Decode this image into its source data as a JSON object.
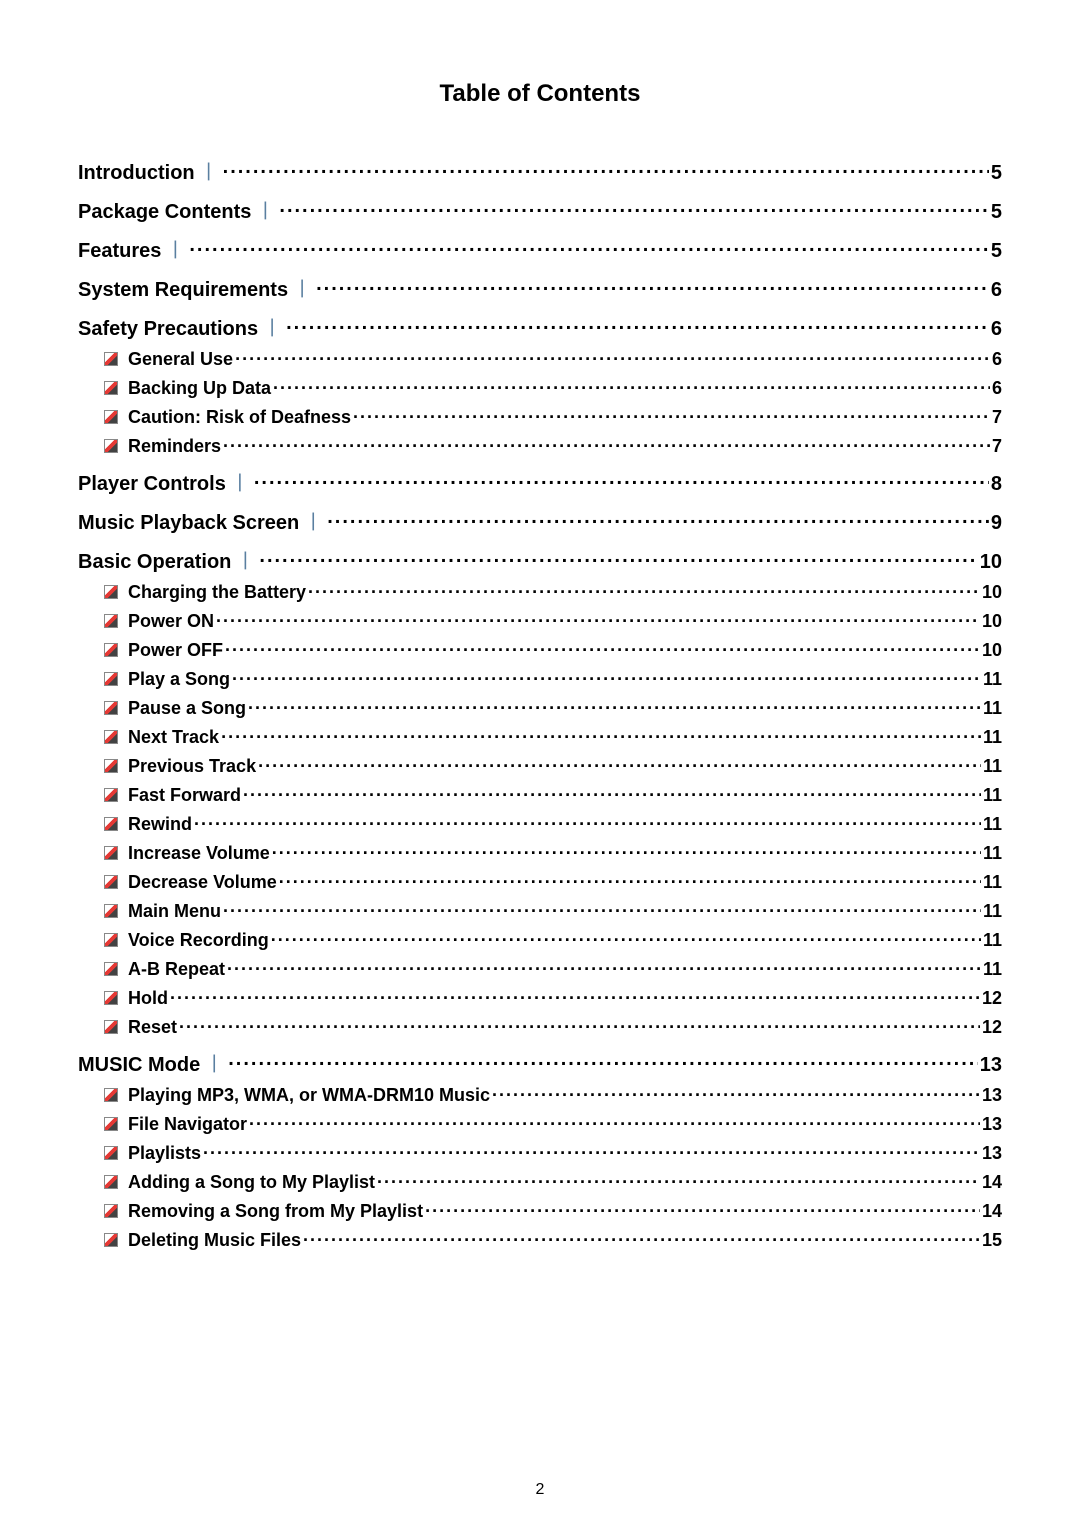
{
  "title": "Table of Contents",
  "pageNumber": "2",
  "colors": {
    "pipe": "#5a7fa0",
    "text": "#000000",
    "background": "#ffffff",
    "bulletRed": "#e53935",
    "bulletDark": "#424242"
  },
  "typography": {
    "titleFontSize": 24,
    "topFontSize": 20,
    "subFontSize": 18,
    "fontFamily": "Arial"
  },
  "entries": [
    {
      "level": "top",
      "label": "Introduction",
      "page": "5",
      "pipe": true
    },
    {
      "level": "top",
      "label": "Package Contents",
      "page": "5",
      "pipe": true
    },
    {
      "level": "top",
      "label": "Features",
      "page": "5",
      "pipe": true
    },
    {
      "level": "top",
      "label": "System Requirements",
      "page": "6",
      "pipe": true
    },
    {
      "level": "top",
      "label": "Safety Precautions",
      "page": "6",
      "pipe": true
    },
    {
      "level": "sub",
      "label": "General Use",
      "page": "6"
    },
    {
      "level": "sub",
      "label": "Backing Up Data",
      "page": "6"
    },
    {
      "level": "sub",
      "label": "Caution: Risk of Deafness",
      "page": "7"
    },
    {
      "level": "sub",
      "label": "Reminders",
      "page": "7"
    },
    {
      "level": "top",
      "label": "Player Controls",
      "page": "8",
      "pipe": true
    },
    {
      "level": "top",
      "label": "Music Playback Screen",
      "page": "9",
      "pipe": true
    },
    {
      "level": "top",
      "label": "Basic Operation",
      "page": "10",
      "pipe": true
    },
    {
      "level": "sub",
      "label": "Charging the Battery",
      "page": "10"
    },
    {
      "level": "sub",
      "label": "Power ON",
      "page": "10"
    },
    {
      "level": "sub",
      "label": "Power OFF",
      "page": "10"
    },
    {
      "level": "sub",
      "label": "Play a Song",
      "page": "11"
    },
    {
      "level": "sub",
      "label": "Pause a Song",
      "page": "11"
    },
    {
      "level": "sub",
      "label": "Next Track",
      "page": "11"
    },
    {
      "level": "sub",
      "label": "Previous Track",
      "page": "11"
    },
    {
      "level": "sub",
      "label": "Fast Forward",
      "page": "11"
    },
    {
      "level": "sub",
      "label": "Rewind",
      "page": "11"
    },
    {
      "level": "sub",
      "label": "Increase Volume",
      "page": "11"
    },
    {
      "level": "sub",
      "label": "Decrease Volume",
      "page": "11"
    },
    {
      "level": "sub",
      "label": "Main Menu",
      "page": "11"
    },
    {
      "level": "sub",
      "label": "Voice Recording",
      "page": "11"
    },
    {
      "level": "sub",
      "label": "A-B Repeat",
      "page": "11"
    },
    {
      "level": "sub",
      "label": "Hold",
      "page": "12"
    },
    {
      "level": "sub",
      "label": "Reset",
      "page": "12"
    },
    {
      "level": "top",
      "label": "MUSIC Mode",
      "page": "13",
      "pipe": true
    },
    {
      "level": "sub",
      "label": "Playing MP3, WMA, or WMA-DRM10 Music",
      "page": "13"
    },
    {
      "level": "sub",
      "label": "File Navigator",
      "page": "13"
    },
    {
      "level": "sub",
      "label": "Playlists",
      "page": "13"
    },
    {
      "level": "sub",
      "label": "Adding a Song to My Playlist",
      "page": "14"
    },
    {
      "level": "sub",
      "label": "Removing a Song from My Playlist",
      "page": "14"
    },
    {
      "level": "sub",
      "label": "Deleting Music Files",
      "page": "15"
    }
  ]
}
